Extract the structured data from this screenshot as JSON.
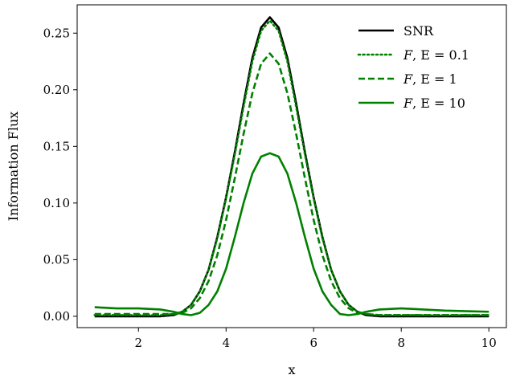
{
  "chart_data": {
    "type": "line",
    "title": "",
    "xlabel": "x",
    "ylabel": "Information Flux",
    "xlim": [
      0.6,
      10.4
    ],
    "ylim": [
      -0.01,
      0.275
    ],
    "xticks": [
      2,
      4,
      6,
      8,
      10
    ],
    "yticks": [
      0.0,
      0.05,
      0.1,
      0.15,
      0.2,
      0.25
    ],
    "ytick_labels": [
      "0.00",
      "0.05",
      "0.10",
      "0.15",
      "0.20",
      "0.25"
    ],
    "grid": false,
    "legend_position": "top-right",
    "series": [
      {
        "name": "SNR",
        "legend": {
          "prefix": "SNR",
          "suffix": ""
        },
        "color": "#000000",
        "style": "solid",
        "x": [
          1.0,
          1.5,
          2.0,
          2.5,
          2.8,
          3.0,
          3.2,
          3.4,
          3.6,
          3.8,
          4.0,
          4.2,
          4.4,
          4.6,
          4.8,
          5.0,
          5.2,
          5.4,
          5.6,
          5.8,
          6.0,
          6.2,
          6.4,
          6.6,
          6.8,
          7.0,
          7.2,
          7.5,
          8.0,
          9.0,
          10.0
        ],
        "y": [
          0.0,
          0.0,
          0.0,
          0.0,
          0.001,
          0.004,
          0.01,
          0.022,
          0.041,
          0.07,
          0.105,
          0.145,
          0.188,
          0.228,
          0.255,
          0.264,
          0.255,
          0.228,
          0.188,
          0.145,
          0.105,
          0.07,
          0.041,
          0.022,
          0.01,
          0.004,
          0.001,
          0.0,
          0.0,
          0.0,
          0.0
        ]
      },
      {
        "name": "F, E = 0.1",
        "legend": {
          "prefix": "F",
          "suffix": ", E = 0.1"
        },
        "color": "#008000",
        "style": "dotted",
        "x": [
          1.0,
          1.5,
          2.0,
          2.5,
          2.8,
          3.0,
          3.2,
          3.4,
          3.6,
          3.8,
          4.0,
          4.2,
          4.4,
          4.6,
          4.8,
          5.0,
          5.2,
          5.4,
          5.6,
          5.8,
          6.0,
          6.2,
          6.4,
          6.6,
          6.8,
          7.0,
          7.2,
          7.5,
          8.0,
          9.0,
          10.0
        ],
        "y": [
          0.001,
          0.001,
          0.001,
          0.001,
          0.002,
          0.004,
          0.01,
          0.022,
          0.041,
          0.069,
          0.104,
          0.143,
          0.185,
          0.225,
          0.252,
          0.261,
          0.252,
          0.225,
          0.185,
          0.143,
          0.104,
          0.069,
          0.041,
          0.022,
          0.01,
          0.004,
          0.002,
          0.001,
          0.001,
          0.001,
          0.001
        ]
      },
      {
        "name": "F, E = 1",
        "legend": {
          "prefix": "F",
          "suffix": ", E = 1"
        },
        "color": "#008000",
        "style": "dashed",
        "x": [
          1.0,
          1.5,
          2.0,
          2.5,
          2.8,
          3.0,
          3.2,
          3.4,
          3.6,
          3.8,
          4.0,
          4.2,
          4.4,
          4.6,
          4.8,
          5.0,
          5.2,
          5.4,
          5.6,
          5.8,
          6.0,
          6.2,
          6.4,
          6.6,
          6.8,
          7.0,
          7.2,
          7.5,
          8.0,
          9.0,
          10.0
        ],
        "y": [
          0.002,
          0.002,
          0.002,
          0.002,
          0.002,
          0.003,
          0.007,
          0.016,
          0.031,
          0.054,
          0.085,
          0.122,
          0.161,
          0.197,
          0.223,
          0.232,
          0.223,
          0.197,
          0.161,
          0.122,
          0.085,
          0.054,
          0.031,
          0.016,
          0.007,
          0.003,
          0.002,
          0.001,
          0.001,
          0.001,
          0.001
        ]
      },
      {
        "name": "F, E = 10",
        "legend": {
          "prefix": "F",
          "suffix": ", E = 10"
        },
        "color": "#008000",
        "style": "solid",
        "x": [
          1.0,
          1.5,
          2.0,
          2.5,
          2.8,
          3.0,
          3.2,
          3.4,
          3.6,
          3.8,
          4.0,
          4.2,
          4.4,
          4.6,
          4.8,
          5.0,
          5.2,
          5.4,
          5.6,
          5.8,
          6.0,
          6.2,
          6.4,
          6.6,
          6.8,
          7.0,
          7.2,
          7.5,
          8.0,
          8.5,
          9.0,
          9.5,
          10.0
        ],
        "y": [
          0.008,
          0.007,
          0.007,
          0.006,
          0.004,
          0.002,
          0.001,
          0.003,
          0.01,
          0.022,
          0.042,
          0.07,
          0.1,
          0.126,
          0.141,
          0.144,
          0.141,
          0.126,
          0.1,
          0.07,
          0.042,
          0.022,
          0.01,
          0.002,
          0.001,
          0.002,
          0.004,
          0.006,
          0.007,
          0.006,
          0.005,
          0.0045,
          0.004
        ]
      }
    ]
  }
}
